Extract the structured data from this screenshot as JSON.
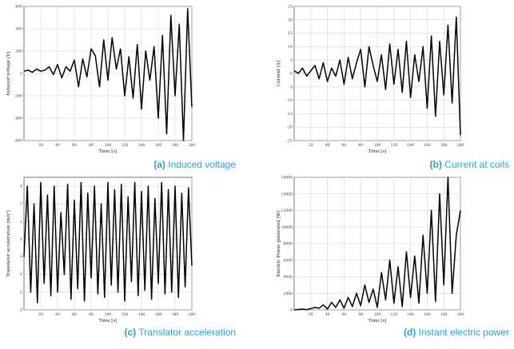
{
  "chart_data": [
    {
      "type": "line",
      "caption_tag": "(a)",
      "caption_text": "Induced voltage",
      "xlabel": "Time [s]",
      "ylabel": "Induced voltage [V]",
      "xlim": [
        0,
        200
      ],
      "ylim": [
        -600,
        600
      ],
      "xticks": [
        20,
        40,
        60,
        80,
        100,
        120,
        140,
        160,
        180,
        200
      ],
      "yticks": [
        -600,
        -400,
        -200,
        0,
        200,
        400,
        600
      ],
      "grid": true,
      "x": [
        0,
        5,
        10,
        15,
        20,
        25,
        30,
        35,
        40,
        45,
        50,
        55,
        60,
        65,
        70,
        75,
        80,
        85,
        90,
        95,
        100,
        105,
        110,
        115,
        120,
        125,
        130,
        135,
        140,
        145,
        150,
        155,
        160,
        165,
        170,
        175,
        180,
        185,
        190,
        195,
        200
      ],
      "y": [
        20,
        30,
        10,
        40,
        20,
        30,
        60,
        -10,
        80,
        -40,
        60,
        20,
        120,
        -120,
        130,
        -30,
        220,
        160,
        -120,
        300,
        -60,
        320,
        40,
        220,
        -200,
        150,
        -220,
        260,
        -320,
        200,
        -60,
        240,
        -400,
        340,
        -540,
        520,
        -200,
        440,
        -600,
        580,
        -300
      ],
      "color": "#000000"
    },
    {
      "type": "line",
      "caption_tag": "(b)",
      "caption_text": "Current at coils",
      "xlabel": "Time [s]",
      "ylabel": "Current [A]",
      "xlim": [
        0,
        200
      ],
      "ylim": [
        -25,
        25
      ],
      "xticks": [
        20,
        40,
        60,
        80,
        100,
        120,
        140,
        160,
        180,
        200
      ],
      "yticks": [
        -25,
        -20,
        -15,
        -10,
        -5,
        0,
        5,
        10,
        15,
        20,
        25
      ],
      "grid": true,
      "x": [
        0,
        5,
        10,
        15,
        20,
        25,
        30,
        35,
        40,
        45,
        50,
        55,
        60,
        65,
        70,
        75,
        80,
        85,
        90,
        95,
        100,
        105,
        110,
        115,
        120,
        125,
        130,
        135,
        140,
        145,
        150,
        155,
        160,
        165,
        170,
        175,
        180,
        185,
        190,
        195,
        200
      ],
      "y": [
        1,
        0,
        2,
        -1,
        1,
        3,
        -2,
        4,
        -3,
        2,
        -1,
        5,
        -4,
        6,
        -2,
        4,
        9,
        -5,
        10,
        3,
        -3,
        7,
        -6,
        11,
        -4,
        9,
        -7,
        12,
        -9,
        7,
        -3,
        10,
        -13,
        14,
        -16,
        12,
        -8,
        18,
        -11,
        21,
        -23
      ],
      "color": "#000000"
    },
    {
      "type": "line",
      "caption_tag": "(c)",
      "caption_text": "Translator acceleration",
      "xlabel": "Time [s]",
      "ylabel": "Translator acceleration [m/s²]",
      "xlim": [
        0,
        200
      ],
      "ylim": [
        -3,
        4.5
      ],
      "xticks": [
        20,
        40,
        60,
        80,
        100,
        120,
        140,
        160,
        180,
        200
      ],
      "yticks": [
        -3,
        -2,
        -1,
        0,
        1,
        2,
        3,
        4
      ],
      "grid": true,
      "x": [
        0,
        4,
        8,
        12,
        16,
        20,
        24,
        28,
        32,
        36,
        40,
        44,
        48,
        52,
        56,
        60,
        64,
        68,
        72,
        76,
        80,
        84,
        88,
        92,
        96,
        100,
        104,
        108,
        112,
        116,
        120,
        124,
        128,
        132,
        136,
        140,
        144,
        148,
        152,
        156,
        160,
        164,
        168,
        172,
        176,
        180,
        184,
        188,
        192,
        196,
        200
      ],
      "y": [
        0,
        4,
        -2,
        3,
        -2.6,
        4.2,
        -1.5,
        3.5,
        -2.2,
        4,
        -2,
        2.5,
        -1,
        4.1,
        -2.4,
        3.2,
        -1.8,
        4.2,
        -2.5,
        3.6,
        -1.2,
        4,
        -2.1,
        3,
        -2.3,
        4.2,
        -1.6,
        3.8,
        -2,
        4.1,
        -2.5,
        3.4,
        -1.4,
        4.2,
        -2.2,
        3.7,
        -1.9,
        4,
        -2.4,
        3.3,
        -1.5,
        4.2,
        -2.1,
        3.8,
        -2,
        4,
        -2.3,
        3.6,
        -1.7,
        3.9,
        -0.5
      ],
      "color": "#000000"
    },
    {
      "type": "line",
      "caption_tag": "(d)",
      "caption_text": "Instant electric power",
      "xlabel": "Time [s]",
      "ylabel": "Electric Power generated [W]",
      "xlim": [
        0,
        200
      ],
      "ylim": [
        0,
        16000
      ],
      "xticks": [
        20,
        40,
        60,
        80,
        100,
        120,
        140,
        160,
        180,
        200
      ],
      "yticks": [
        0,
        2000,
        4000,
        6000,
        8000,
        10000,
        12000,
        14000,
        16000
      ],
      "grid": true,
      "x": [
        0,
        5,
        10,
        15,
        20,
        25,
        30,
        35,
        40,
        45,
        50,
        55,
        60,
        65,
        70,
        75,
        80,
        85,
        90,
        95,
        100,
        105,
        110,
        115,
        120,
        125,
        130,
        135,
        140,
        145,
        150,
        155,
        160,
        165,
        170,
        175,
        180,
        185,
        190,
        195,
        200
      ],
      "y": [
        0,
        50,
        100,
        30,
        150,
        300,
        200,
        600,
        100,
        900,
        300,
        1200,
        200,
        1500,
        400,
        2000,
        500,
        3000,
        900,
        2500,
        300,
        4500,
        1200,
        6000,
        800,
        5200,
        400,
        7000,
        1500,
        6500,
        800,
        9000,
        2000,
        12000,
        1000,
        14000,
        3000,
        16000,
        2000,
        9000,
        12000
      ],
      "color": "#000000"
    }
  ]
}
